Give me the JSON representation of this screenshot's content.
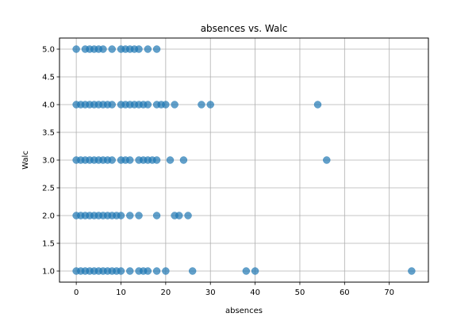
{
  "chart_data": {
    "type": "scatter",
    "title": "absences vs. Walc",
    "xlabel": "absences",
    "ylabel": "Walc",
    "xlim": [
      -3.75,
      78.75
    ],
    "ylim": [
      0.8,
      5.2
    ],
    "xticks": [
      0,
      10,
      20,
      30,
      40,
      50,
      60,
      70
    ],
    "xtick_labels": [
      "0",
      "10",
      "20",
      "30",
      "40",
      "50",
      "60",
      "70"
    ],
    "yticks": [
      1.0,
      1.5,
      2.0,
      2.5,
      3.0,
      3.5,
      4.0,
      4.5,
      5.0
    ],
    "ytick_labels": [
      "1.0",
      "1.5",
      "2.0",
      "2.5",
      "3.0",
      "3.5",
      "4.0",
      "4.5",
      "5.0"
    ],
    "grid": true,
    "marker_color": "#1f77b4",
    "marker_alpha": 0.7,
    "points": [
      {
        "y": 5,
        "x": [
          0,
          2,
          3,
          4,
          5,
          6,
          8,
          10,
          11,
          12,
          13,
          14,
          16,
          18
        ]
      },
      {
        "y": 4,
        "x": [
          0,
          1,
          2,
          3,
          4,
          5,
          6,
          7,
          8,
          10,
          11,
          12,
          13,
          14,
          15,
          16,
          18,
          19,
          20,
          22,
          28,
          30,
          54
        ]
      },
      {
        "y": 3,
        "x": [
          0,
          1,
          2,
          3,
          4,
          5,
          6,
          7,
          8,
          10,
          11,
          12,
          14,
          15,
          16,
          17,
          18,
          21,
          24,
          56
        ]
      },
      {
        "y": 2,
        "x": [
          0,
          1,
          2,
          3,
          4,
          5,
          6,
          7,
          8,
          9,
          10,
          12,
          14,
          18,
          22,
          23,
          25
        ]
      },
      {
        "y": 1,
        "x": [
          0,
          1,
          2,
          3,
          4,
          5,
          6,
          7,
          8,
          9,
          10,
          12,
          14,
          15,
          16,
          18,
          20,
          26,
          38,
          40,
          75
        ]
      }
    ]
  }
}
